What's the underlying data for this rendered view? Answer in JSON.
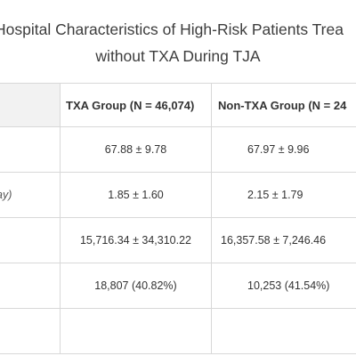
{
  "title": {
    "line1": "Hospital Characteristics of High-Risk Patients Trea",
    "line2": "without TXA During TJA"
  },
  "table": {
    "headers": [
      "",
      "TXA Group (N = 46,074)",
      "Non-TXA Group (N = 24"
    ],
    "rows": [
      {
        "label": "",
        "txa": "67.88 ± 9.78",
        "non_txa": "67.97 ± 9.96"
      },
      {
        "label": "ay)",
        "txa": "1.85 ± 1.60",
        "non_txa": "2.15 ± 1.79"
      },
      {
        "label": "",
        "txa": "15,716.34 ± 34,310.22",
        "non_txa": "16,357.58 ± 7,246.46"
      },
      {
        "label": "",
        "txa": "18,807 (40.82%)",
        "non_txa": "10,253 (41.54%)"
      },
      {
        "label": "",
        "txa": "",
        "non_txa": ""
      }
    ]
  }
}
